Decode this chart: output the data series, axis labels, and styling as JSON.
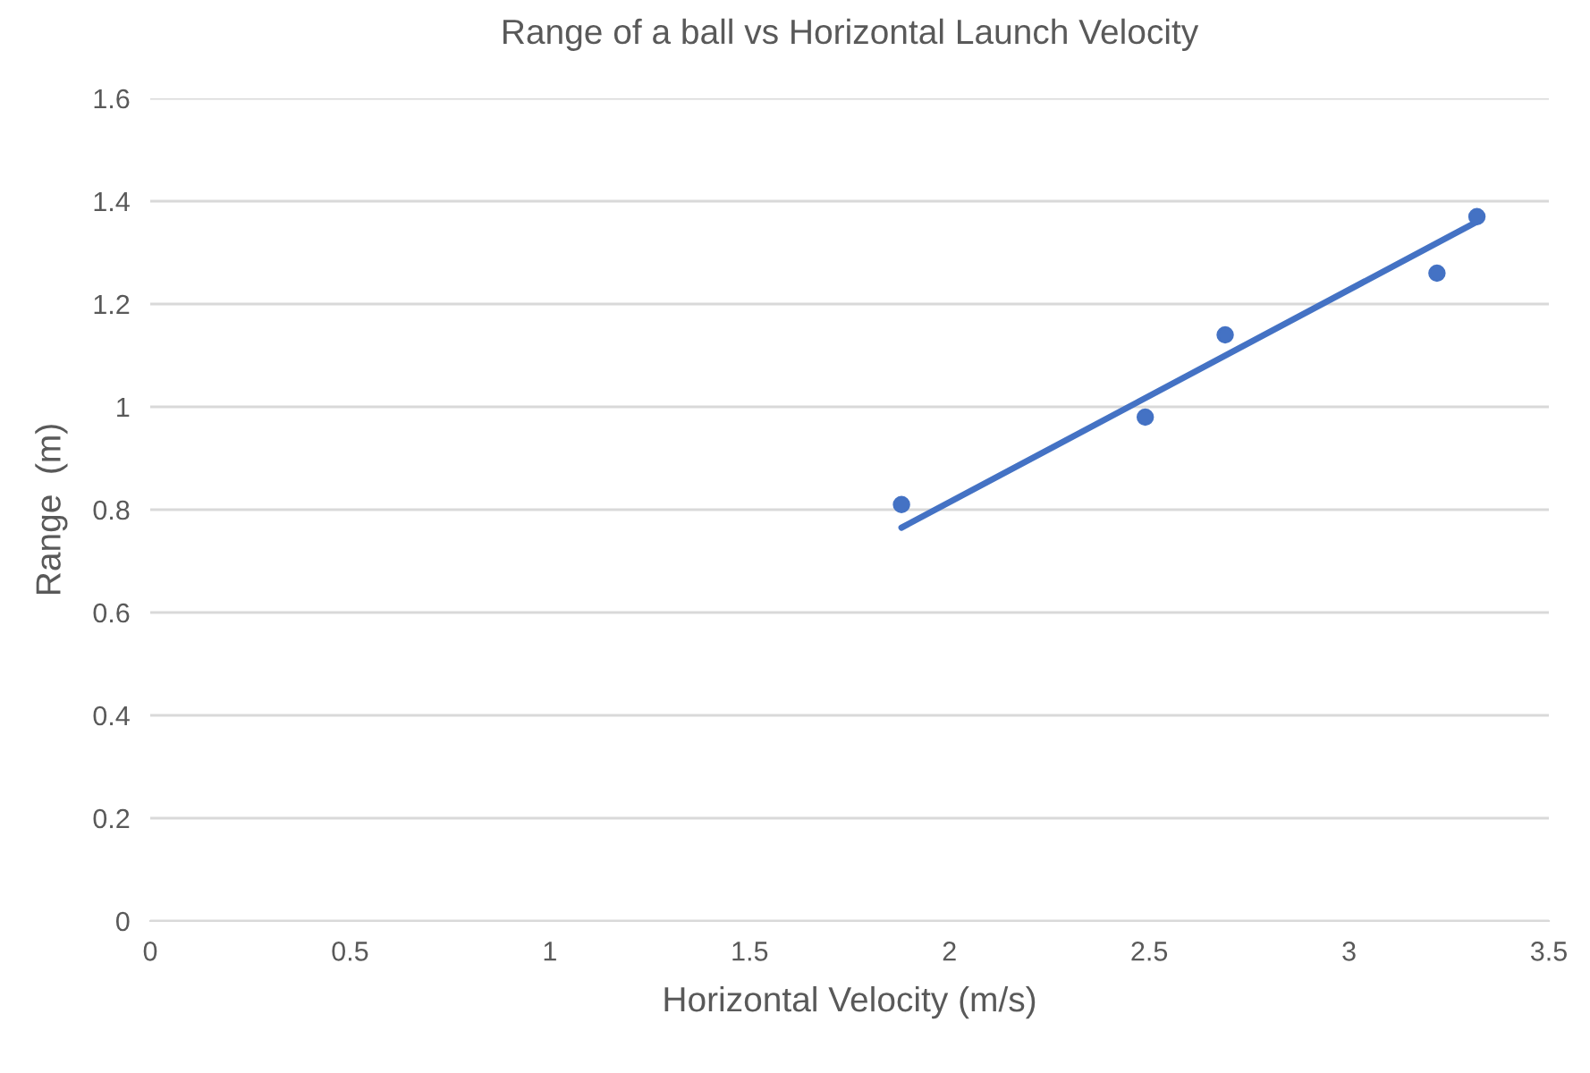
{
  "chart_data": {
    "type": "scatter",
    "title": "Range of a ball vs Horizontal Launch Velocity",
    "xlabel": "Horizontal Velocity (m/s)",
    "ylabel": "Range  (m)",
    "series": [
      {
        "color": "#4472c4",
        "x": [
          1.88,
          2.49,
          2.69,
          3.22,
          3.32
        ],
        "values": [
          0.81,
          0.98,
          1.14,
          1.26,
          1.37
        ],
        "marker": "circle"
      },
      {
        "type": "line",
        "color": "#4472c4",
        "x": [
          1.88,
          3.32
        ],
        "values": [
          0.765,
          1.36
        ],
        "marker": "none",
        "line_style": "solid"
      }
    ],
    "xlim": [
      0,
      3.5
    ],
    "xticks": [
      0,
      0.5,
      1,
      1.5,
      2,
      2.5,
      3,
      3.5
    ],
    "ylim": [
      0,
      1.6
    ],
    "yticks": [
      0,
      {
        "value": 0.2,
        "label": "0.2"
      },
      {
        "value": 0.4,
        "label": "0.4"
      },
      {
        "value": 0.6,
        "label": "0.6"
      },
      {
        "value": 0.8,
        "label": "0.8"
      },
      1,
      {
        "value": 1.2,
        "label": "1.2"
      },
      {
        "value": 1.4,
        "label": "1.4"
      },
      {
        "value": 1.6,
        "label": "1.6"
      }
    ],
    "grid": "y",
    "legend": false
  }
}
